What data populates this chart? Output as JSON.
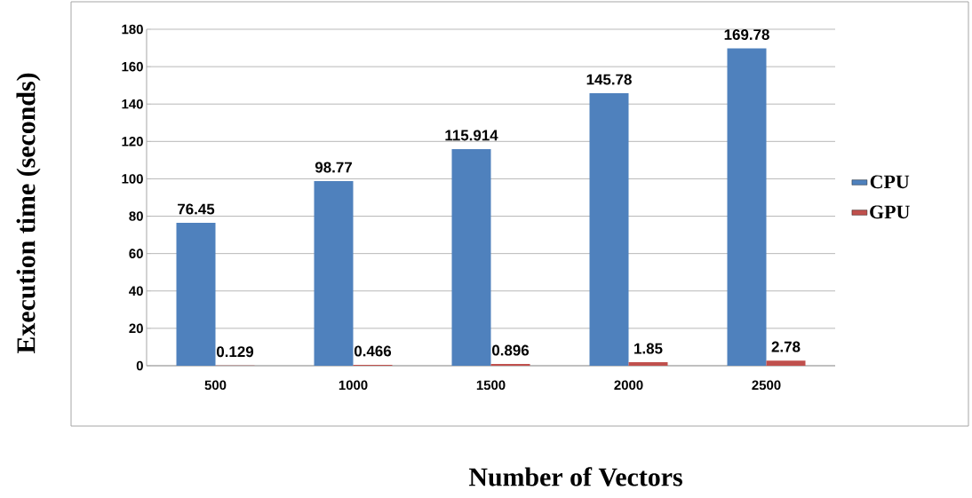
{
  "chart_data": {
    "type": "bar",
    "xlabel": "Number of Vectors",
    "ylabel": "Execution time (seconds)",
    "categories": [
      "500",
      "1000",
      "1500",
      "2000",
      "2500"
    ],
    "series": [
      {
        "name": "CPU",
        "color": "#4f81bd",
        "values": [
          76.45,
          98.77,
          115.914,
          145.78,
          169.78
        ]
      },
      {
        "name": "GPU",
        "color": "#c0504d",
        "values": [
          0.129,
          0.466,
          0.896,
          1.85,
          2.78
        ]
      }
    ],
    "ylim": [
      0,
      180
    ],
    "yticks": [
      0,
      20,
      40,
      60,
      80,
      100,
      120,
      140,
      160,
      180
    ],
    "grid": "y",
    "data_labels": true,
    "legend": "right"
  }
}
